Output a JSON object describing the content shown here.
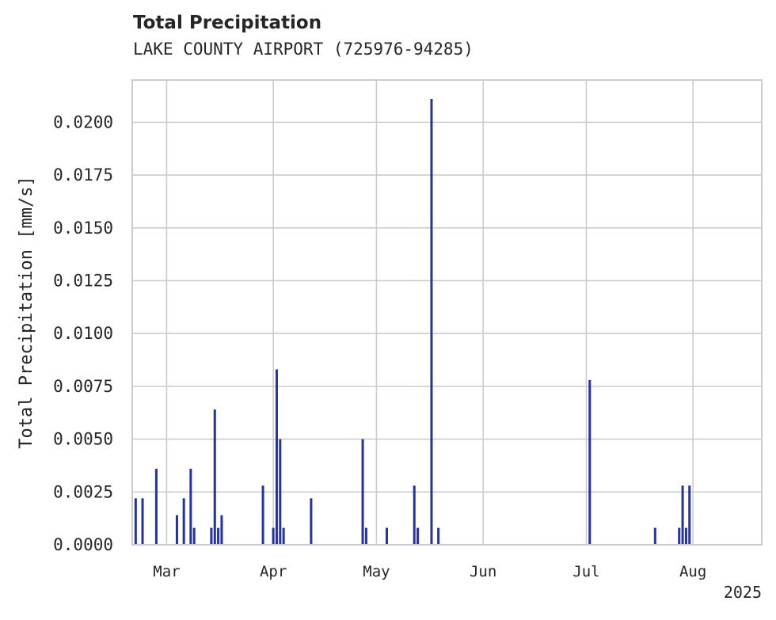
{
  "chart_data": {
    "type": "bar",
    "title": "Total Precipitation",
    "subtitle": "LAKE COUNTY AIRPORT (725976-94285)",
    "xlabel": "",
    "ylabel": "Total Precipitation [mm/s]",
    "x_axis": {
      "type": "date",
      "range": [
        "2025-02-19",
        "2025-08-21"
      ],
      "ticks": [
        {
          "date": "2025-03-01",
          "label": "Mar"
        },
        {
          "date": "2025-04-01",
          "label": "Apr"
        },
        {
          "date": "2025-05-01",
          "label": "May"
        },
        {
          "date": "2025-06-01",
          "label": "Jun"
        },
        {
          "date": "2025-07-01",
          "label": "Jul"
        },
        {
          "date": "2025-08-01",
          "label": "Aug"
        }
      ],
      "offset_label": "2025"
    },
    "y_axis": {
      "range": [
        0,
        0.022
      ],
      "ticks": [
        0.0,
        0.0025,
        0.005,
        0.0075,
        0.01,
        0.0125,
        0.015,
        0.0175,
        0.02
      ],
      "tick_labels": [
        "0.0000",
        "0.0025",
        "0.0050",
        "0.0075",
        "0.0100",
        "0.0125",
        "0.0150",
        "0.0175",
        "0.0200"
      ]
    },
    "grid": true,
    "color": "#283593",
    "series": [
      {
        "points": [
          {
            "x": "2025-02-20",
            "y": 0.0022
          },
          {
            "x": "2025-02-22",
            "y": 0.0022
          },
          {
            "x": "2025-02-26",
            "y": 0.0036
          },
          {
            "x": "2025-03-04",
            "y": 0.0014
          },
          {
            "x": "2025-03-06",
            "y": 0.0022
          },
          {
            "x": "2025-03-08",
            "y": 0.0036
          },
          {
            "x": "2025-03-09",
            "y": 0.0008
          },
          {
            "x": "2025-03-14",
            "y": 0.0008
          },
          {
            "x": "2025-03-15",
            "y": 0.0064
          },
          {
            "x": "2025-03-16",
            "y": 0.0008
          },
          {
            "x": "2025-03-17",
            "y": 0.0014
          },
          {
            "x": "2025-03-29",
            "y": 0.0028
          },
          {
            "x": "2025-04-01",
            "y": 0.0008
          },
          {
            "x": "2025-04-02",
            "y": 0.0083
          },
          {
            "x": "2025-04-03",
            "y": 0.005
          },
          {
            "x": "2025-04-04",
            "y": 0.0008
          },
          {
            "x": "2025-04-12",
            "y": 0.0022
          },
          {
            "x": "2025-04-27",
            "y": 0.005
          },
          {
            "x": "2025-04-28",
            "y": 0.0008
          },
          {
            "x": "2025-05-04",
            "y": 0.0008
          },
          {
            "x": "2025-05-12",
            "y": 0.0028
          },
          {
            "x": "2025-05-13",
            "y": 0.0008
          },
          {
            "x": "2025-05-17",
            "y": 0.0211
          },
          {
            "x": "2025-05-19",
            "y": 0.0008
          },
          {
            "x": "2025-07-02",
            "y": 0.0078
          },
          {
            "x": "2025-07-21",
            "y": 0.0008
          },
          {
            "x": "2025-07-28",
            "y": 0.0008
          },
          {
            "x": "2025-07-29",
            "y": 0.0028
          },
          {
            "x": "2025-07-30",
            "y": 0.0008
          },
          {
            "x": "2025-07-31",
            "y": 0.0028
          }
        ]
      }
    ]
  }
}
